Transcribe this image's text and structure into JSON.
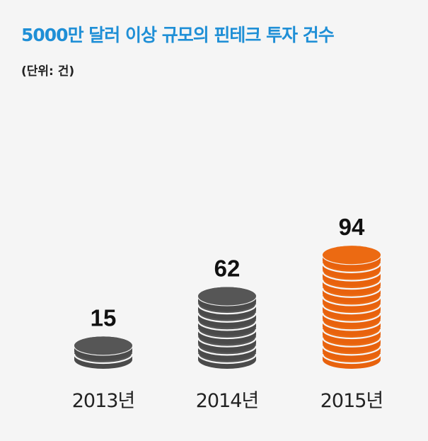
{
  "title": "5000만 달러 이상 규모의 핀테크 투자 건수",
  "unit_label": "(단위: 건)",
  "colors": {
    "title": "#1f8fd6",
    "dark_coin": "#4a4a4a",
    "dark_coin_top": "#565656",
    "accent_coin": "#e8620d",
    "accent_coin_top": "#ec6a12",
    "background": "#f5f5f5"
  },
  "chart_data": {
    "type": "bar",
    "style": "stacked coins",
    "title": "5000만 달러 이상 규모의 핀테크 투자 건수",
    "unit": "(단위: 건)",
    "categories": [
      "2013년",
      "2014년",
      "2015년"
    ],
    "values": [
      15,
      62,
      94
    ],
    "value_labels": [
      "15",
      "62",
      "94"
    ],
    "highlight": "2015년",
    "grid": false,
    "legend": "none"
  }
}
